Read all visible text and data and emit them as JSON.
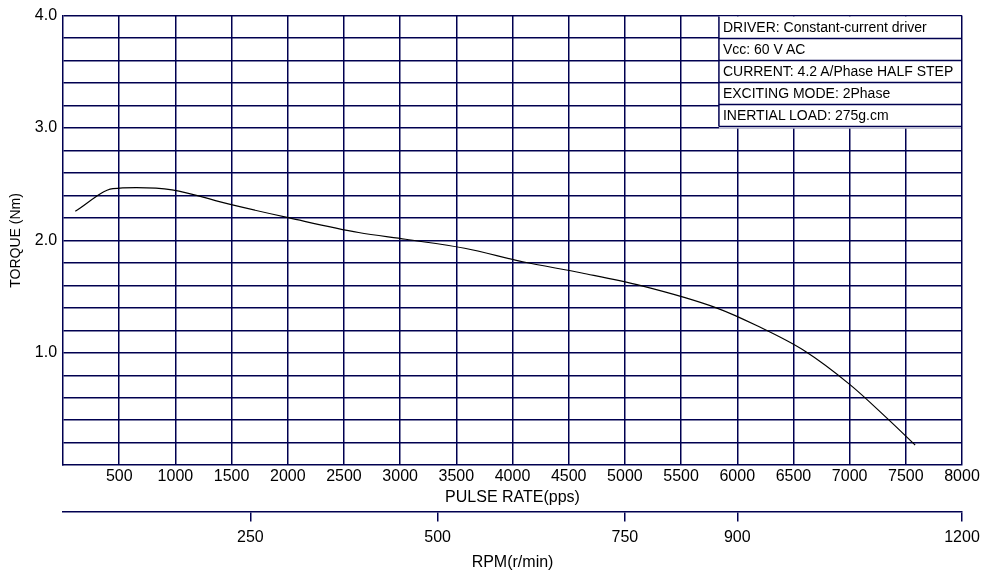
{
  "chart_data": {
    "type": "line",
    "xlabel": "PULSE RATE(pps)",
    "ylabel": "TORQUE (Nm)",
    "x2label": "RPM(r/min)",
    "x": [
      109,
      444,
      653,
      970,
      1488,
      2014,
      2630,
      3048,
      3574,
      4091,
      4617,
      5134,
      5814,
      6177,
      6594,
      7011,
      7320,
      7583
    ],
    "series": [
      {
        "color": "#000000",
        "values": [
          2.26,
          2.46,
          2.47,
          2.45,
          2.32,
          2.2,
          2.07,
          2.01,
          1.93,
          1.81,
          1.71,
          1.6,
          1.4,
          1.24,
          1.02,
          0.71,
          0.43,
          0.18
        ]
      }
    ],
    "xlim": [
      0,
      8000
    ],
    "xticks": [
      500,
      1000,
      1500,
      2000,
      2500,
      3000,
      3500,
      4000,
      4500,
      5000,
      5500,
      6000,
      6500,
      7000,
      7500,
      8000
    ],
    "x2lim": [
      0,
      1200
    ],
    "x2ticks": [
      250,
      500,
      750,
      900,
      1200
    ],
    "ylim": [
      0,
      4.0
    ],
    "yticks": [
      {
        "value": 0.2,
        "label": null
      },
      {
        "value": 0.4,
        "label": null
      },
      {
        "value": 0.6,
        "label": null
      },
      {
        "value": 0.8,
        "label": null
      },
      {
        "value": 1.0,
        "label": "1.0"
      },
      {
        "value": 1.2,
        "label": null
      },
      {
        "value": 1.4,
        "label": null
      },
      {
        "value": 1.6,
        "label": null
      },
      {
        "value": 1.8,
        "label": null
      },
      {
        "value": 2.0,
        "label": "2.0"
      },
      {
        "value": 2.2,
        "label": null
      },
      {
        "value": 2.4,
        "label": null
      },
      {
        "value": 2.6,
        "label": null
      },
      {
        "value": 2.8,
        "label": null
      },
      {
        "value": 3.0,
        "label": "3.0"
      },
      {
        "value": 3.2,
        "label": null
      },
      {
        "value": 3.4,
        "label": null
      },
      {
        "value": 3.6,
        "label": null
      },
      {
        "value": 3.8,
        "label": null
      },
      {
        "value": 4.0,
        "label": "4.0"
      }
    ],
    "grid": true,
    "legend": false,
    "marker": "none",
    "line_style": "solid",
    "annotations": [
      "DRIVER: Constant-current driver",
      "Vcc: 60 V AC",
      "CURRENT: 4.2 A/Phase HALF STEP",
      "EXCITING MODE: 2Phase",
      "INERTIAL LOAD: 275g.cm"
    ]
  }
}
